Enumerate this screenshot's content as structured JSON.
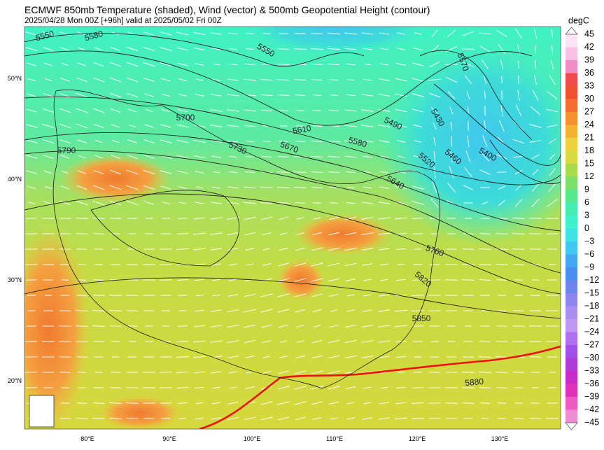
{
  "header": {
    "title": "ECMWF 850mb Temperature (shaded), Wind (vector) & 500mb Geopotential Height (contour)",
    "subtitle": "2025/04/28 Mon 00Z [+96h] valid at 2025/05/02 Fri 00Z"
  },
  "colorbar": {
    "unit": "degC",
    "ticks": [
      "45",
      "42",
      "39",
      "36",
      "33",
      "30",
      "27",
      "24",
      "21",
      "18",
      "15",
      "12",
      "9",
      "6",
      "3",
      "0",
      "−3",
      "−6",
      "−9",
      "−12",
      "−15",
      "−18",
      "−21",
      "−24",
      "−27",
      "−30",
      "−33",
      "−36",
      "−39",
      "−42",
      "−45"
    ]
  },
  "axes": {
    "lon_labels": [
      "80°E",
      "90°E",
      "100°E",
      "110°E",
      "120°E",
      "130°E"
    ],
    "lat_labels": [
      "50°N",
      "40°N",
      "30°N",
      "20°N"
    ]
  },
  "contour_labels": [
    "5550",
    "5580",
    "5550",
    "5570",
    "5700",
    "5610",
    "5490",
    "5430",
    "5790",
    "5730",
    "5670",
    "5580",
    "5520",
    "5460",
    "5400",
    "5640",
    "5760",
    "5820",
    "5850",
    "5880"
  ]
}
